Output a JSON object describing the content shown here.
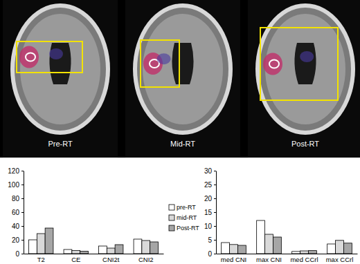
{
  "images": {
    "panels": [
      "Pre-RT",
      "Mid-RT",
      "Post-RT"
    ]
  },
  "chart_data": [
    {
      "type": "bar",
      "categories": [
        "T2",
        "CE",
        "CNI2t",
        "CNI2"
      ],
      "ylim": [
        0,
        120
      ],
      "yticks": [
        0,
        20,
        40,
        60,
        80,
        100,
        120
      ],
      "legend": "right",
      "grid": false,
      "series": [
        {
          "name": "pre-RT",
          "color": "#ffffff",
          "values": [
            20,
            6,
            11,
            21
          ]
        },
        {
          "name": "mid-RT",
          "color": "#d9d9d9",
          "values": [
            29,
            4.5,
            8,
            19
          ]
        },
        {
          "name": "Post-RT",
          "color": "#a6a6a6",
          "values": [
            37,
            3.5,
            13,
            17
          ]
        }
      ]
    },
    {
      "type": "bar",
      "categories": [
        "med CNI",
        "max CNI",
        "med CCrl",
        "max CCrl"
      ],
      "ylim": [
        0,
        30
      ],
      "yticks": [
        0,
        5,
        10,
        15,
        20,
        25,
        30
      ],
      "grid": false,
      "series": [
        {
          "color": "#ffffff",
          "values": [
            4,
            12,
            0.8,
            3.5
          ]
        },
        {
          "color": "#d9d9d9",
          "values": [
            3.3,
            7,
            1,
            4.8
          ]
        },
        {
          "color": "#a6a6a6",
          "values": [
            3,
            6,
            1.1,
            3.8
          ]
        }
      ]
    }
  ]
}
